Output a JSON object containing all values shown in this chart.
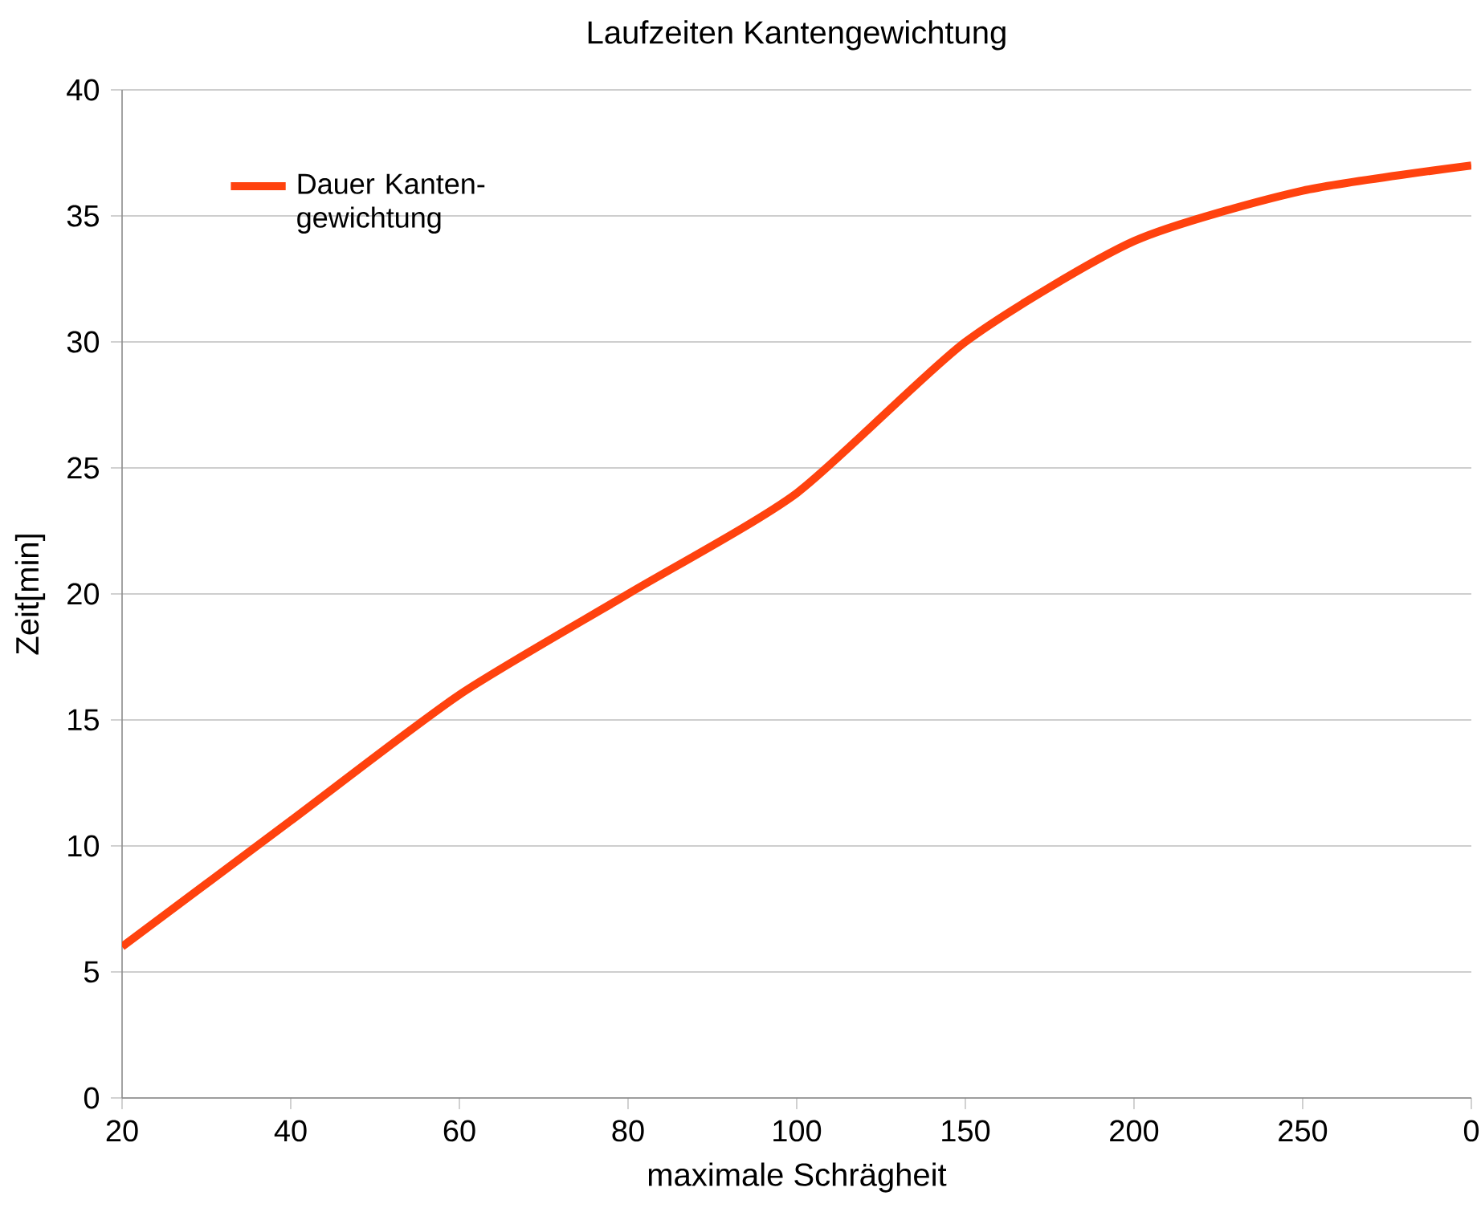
{
  "chart_data": {
    "type": "line",
    "title": "Laufzeiten Kantengewichtung",
    "xlabel": "maximale Schrägheit",
    "ylabel": "Zeit[min]",
    "categories": [
      "20",
      "40",
      "60",
      "80",
      "100",
      "150",
      "200",
      "250",
      "0"
    ],
    "series": [
      {
        "name": "Dauer Kanten-gewichtung",
        "color": "#ff420e",
        "values": [
          6,
          11,
          16,
          20,
          24,
          30,
          34,
          36,
          37
        ]
      }
    ],
    "ylim": [
      0,
      40
    ],
    "yticks": [
      0,
      5,
      10,
      15,
      20,
      25,
      30,
      35,
      40
    ],
    "grid": "y",
    "legend": "top left",
    "marker": "none",
    "line_style": "solid"
  }
}
